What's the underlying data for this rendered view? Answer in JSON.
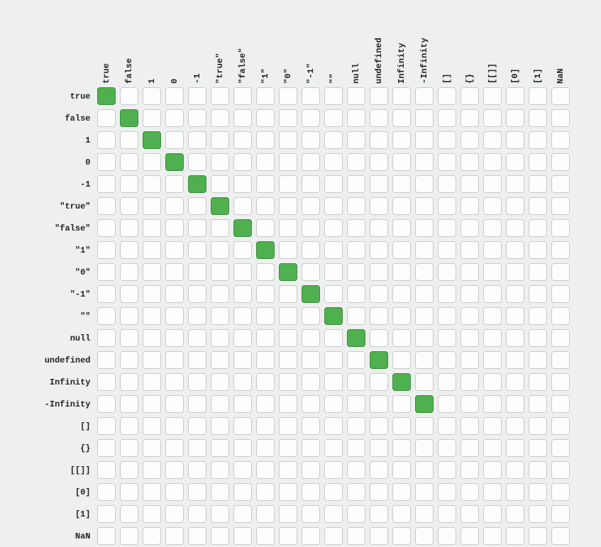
{
  "type": "heatmap-matrix",
  "background_color": "#eef0ef",
  "cell": {
    "width": 26,
    "height": 25,
    "border_radius": 4,
    "gap": 6,
    "blank_fill": "#fdfdfd",
    "blank_border": "#c9c9c8",
    "active_fill": "#4fb04f",
    "active_border": "#3d8b3d"
  },
  "font": {
    "family": "Menlo, Monaco, Courier New, monospace",
    "size": 12,
    "weight": "bold",
    "color": "#222"
  },
  "labels": [
    "true",
    "false",
    "1",
    "0",
    "-1",
    "\"true\"",
    "\"false\"",
    "\"1\"",
    "\"0\"",
    "\"-1\"",
    "\"\"",
    "null",
    "undefined",
    "Infinity",
    "-Infinity",
    "[]",
    "{}",
    "[[]]",
    "[0]",
    "[1]",
    "NaN"
  ],
  "matrix": [
    [
      1,
      0,
      0,
      0,
      0,
      0,
      0,
      0,
      0,
      0,
      0,
      0,
      0,
      0,
      0,
      0,
      0,
      0,
      0,
      0,
      0
    ],
    [
      0,
      1,
      0,
      0,
      0,
      0,
      0,
      0,
      0,
      0,
      0,
      0,
      0,
      0,
      0,
      0,
      0,
      0,
      0,
      0,
      0
    ],
    [
      0,
      0,
      1,
      0,
      0,
      0,
      0,
      0,
      0,
      0,
      0,
      0,
      0,
      0,
      0,
      0,
      0,
      0,
      0,
      0,
      0
    ],
    [
      0,
      0,
      0,
      1,
      0,
      0,
      0,
      0,
      0,
      0,
      0,
      0,
      0,
      0,
      0,
      0,
      0,
      0,
      0,
      0,
      0
    ],
    [
      0,
      0,
      0,
      0,
      1,
      0,
      0,
      0,
      0,
      0,
      0,
      0,
      0,
      0,
      0,
      0,
      0,
      0,
      0,
      0,
      0
    ],
    [
      0,
      0,
      0,
      0,
      0,
      1,
      0,
      0,
      0,
      0,
      0,
      0,
      0,
      0,
      0,
      0,
      0,
      0,
      0,
      0,
      0
    ],
    [
      0,
      0,
      0,
      0,
      0,
      0,
      1,
      0,
      0,
      0,
      0,
      0,
      0,
      0,
      0,
      0,
      0,
      0,
      0,
      0,
      0
    ],
    [
      0,
      0,
      0,
      0,
      0,
      0,
      0,
      1,
      0,
      0,
      0,
      0,
      0,
      0,
      0,
      0,
      0,
      0,
      0,
      0,
      0
    ],
    [
      0,
      0,
      0,
      0,
      0,
      0,
      0,
      0,
      1,
      0,
      0,
      0,
      0,
      0,
      0,
      0,
      0,
      0,
      0,
      0,
      0
    ],
    [
      0,
      0,
      0,
      0,
      0,
      0,
      0,
      0,
      0,
      1,
      0,
      0,
      0,
      0,
      0,
      0,
      0,
      0,
      0,
      0,
      0
    ],
    [
      0,
      0,
      0,
      0,
      0,
      0,
      0,
      0,
      0,
      0,
      1,
      0,
      0,
      0,
      0,
      0,
      0,
      0,
      0,
      0,
      0
    ],
    [
      0,
      0,
      0,
      0,
      0,
      0,
      0,
      0,
      0,
      0,
      0,
      1,
      0,
      0,
      0,
      0,
      0,
      0,
      0,
      0,
      0
    ],
    [
      0,
      0,
      0,
      0,
      0,
      0,
      0,
      0,
      0,
      0,
      0,
      0,
      1,
      0,
      0,
      0,
      0,
      0,
      0,
      0,
      0
    ],
    [
      0,
      0,
      0,
      0,
      0,
      0,
      0,
      0,
      0,
      0,
      0,
      0,
      0,
      1,
      0,
      0,
      0,
      0,
      0,
      0,
      0
    ],
    [
      0,
      0,
      0,
      0,
      0,
      0,
      0,
      0,
      0,
      0,
      0,
      0,
      0,
      0,
      1,
      0,
      0,
      0,
      0,
      0,
      0
    ],
    [
      0,
      0,
      0,
      0,
      0,
      0,
      0,
      0,
      0,
      0,
      0,
      0,
      0,
      0,
      0,
      0,
      0,
      0,
      0,
      0,
      0
    ],
    [
      0,
      0,
      0,
      0,
      0,
      0,
      0,
      0,
      0,
      0,
      0,
      0,
      0,
      0,
      0,
      0,
      0,
      0,
      0,
      0,
      0
    ],
    [
      0,
      0,
      0,
      0,
      0,
      0,
      0,
      0,
      0,
      0,
      0,
      0,
      0,
      0,
      0,
      0,
      0,
      0,
      0,
      0,
      0
    ],
    [
      0,
      0,
      0,
      0,
      0,
      0,
      0,
      0,
      0,
      0,
      0,
      0,
      0,
      0,
      0,
      0,
      0,
      0,
      0,
      0,
      0
    ],
    [
      0,
      0,
      0,
      0,
      0,
      0,
      0,
      0,
      0,
      0,
      0,
      0,
      0,
      0,
      0,
      0,
      0,
      0,
      0,
      0,
      0
    ],
    [
      0,
      0,
      0,
      0,
      0,
      0,
      0,
      0,
      0,
      0,
      0,
      0,
      0,
      0,
      0,
      0,
      0,
      0,
      0,
      0,
      0
    ]
  ]
}
